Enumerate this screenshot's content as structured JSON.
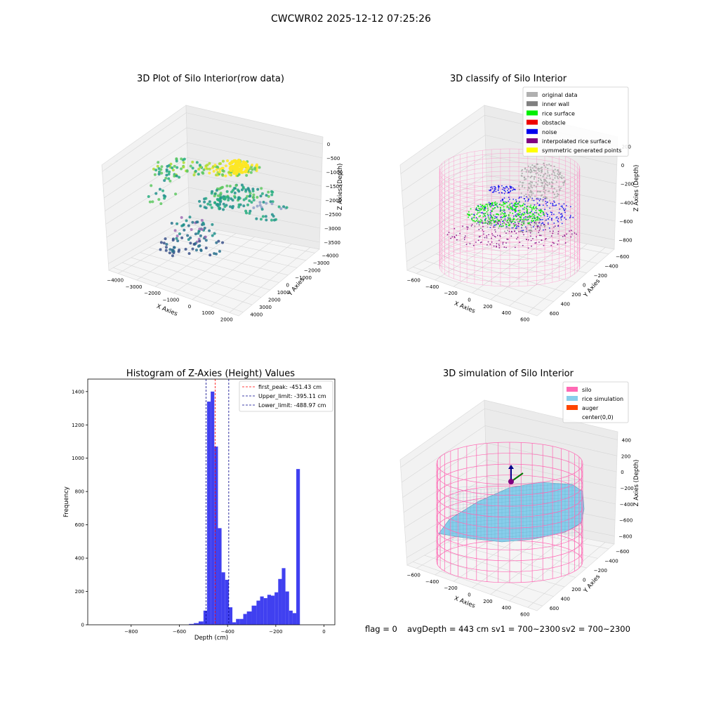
{
  "suptitle": "CWCWR02 2025-12-12 07:25:26",
  "panels": {
    "raw": {
      "title": "3D Plot of Silo Interior(row data)",
      "x_label": "X Axies",
      "y_label": "Y Axies",
      "z_label": "Z Axies (Depth)",
      "x_ticks": [
        "−4000",
        "−3000",
        "−2000",
        "−1000",
        "0",
        "1000",
        "2000"
      ],
      "y_ticks": [
        "−4000",
        "−3000",
        "−2000",
        "−1000",
        "0",
        "1000",
        "2000",
        "3000",
        "4000"
      ],
      "z_ticks": [
        "0",
        "−500",
        "−1000",
        "−1500",
        "−2000",
        "−2500",
        "−3000",
        "−3500"
      ]
    },
    "classify": {
      "title": "3D classify of Silo Interior",
      "x_label": "X Axies",
      "y_label": "Y Axies",
      "z_label": "Z Axies (Depth)",
      "x_ticks": [
        "−600",
        "−400",
        "−200",
        "0",
        "200",
        "400",
        "600"
      ],
      "y_ticks": [
        "−600",
        "−400",
        "−200",
        "0",
        "200",
        "400",
        "600"
      ],
      "z_ticks": [
        "200",
        "0",
        "−200",
        "−400",
        "−600",
        "−800"
      ],
      "legend": [
        {
          "label": "original data",
          "color": "#b0b0b0"
        },
        {
          "label": "inner wall",
          "color": "#808080"
        },
        {
          "label": "rice surface",
          "color": "#00ee00"
        },
        {
          "label": "obstacle",
          "color": "#ee0000"
        },
        {
          "label": "noise",
          "color": "#0000ee"
        },
        {
          "label": "interpolated rice surface",
          "color": "#800080"
        },
        {
          "label": "symmetric generated points",
          "color": "#ffff00"
        }
      ]
    },
    "histogram": {
      "title": "Histogram of Z-Axies (Height) Values",
      "x_label": "Depth (cm)",
      "y_label": "Frequency"
    },
    "simulation": {
      "title": "3D simulation of Silo Interior",
      "x_label": "X Axies",
      "y_label": "Y Axies",
      "z_label": "Z Axies (Depth)",
      "x_ticks": [
        "−600",
        "−400",
        "−200",
        "0",
        "200",
        "400",
        "600"
      ],
      "y_ticks": [
        "−600",
        "−400",
        "−200",
        "0",
        "200",
        "400",
        "600"
      ],
      "z_ticks": [
        "400",
        "200",
        "0",
        "−200",
        "−400",
        "−600",
        "−800"
      ],
      "legend": [
        {
          "label": "silo",
          "color": "#ff69b4"
        },
        {
          "label": "rice simulation",
          "color": "#87ceeb"
        },
        {
          "label": "auger",
          "color": "#ff4500"
        },
        {
          "label": "center(0,0)",
          "color": null
        }
      ]
    }
  },
  "chart_data": {
    "type": "bar",
    "title": "Histogram of Z-Axies (Height) Values",
    "xlabel": "Depth (cm)",
    "ylabel": "Frequency",
    "xlim": [
      -980,
      45
    ],
    "ylim": [
      0,
      1475
    ],
    "x_ticks": [
      -800,
      -600,
      -400,
      -200,
      0
    ],
    "x_tick_labels": [
      "−800",
      "−600",
      "−400",
      "−200",
      "0"
    ],
    "y_ticks": [
      0,
      200,
      400,
      600,
      800,
      1000,
      1200,
      1400
    ],
    "bin_edges": [
      -560,
      -540,
      -520,
      -500,
      -485,
      -470,
      -455,
      -440,
      -425,
      -410,
      -395,
      -380,
      -365,
      -350,
      -335,
      -320,
      -300,
      -280,
      -265,
      -250,
      -235,
      -220,
      -205,
      -190,
      -175,
      -160,
      -145,
      -130,
      -115,
      -100,
      -85,
      -70,
      -55,
      -40,
      -25,
      -10,
      0
    ],
    "counts": [
      5,
      10,
      20,
      85,
      1340,
      1400,
      1070,
      580,
      315,
      270,
      105,
      15,
      35,
      35,
      65,
      80,
      115,
      145,
      170,
      160,
      180,
      175,
      195,
      275,
      340,
      200,
      85,
      70,
      935,
      0,
      0,
      0,
      0,
      0,
      0,
      0
    ],
    "series_color": "#4040f0",
    "lines": [
      {
        "label": "first_peak: -451.43 cm",
        "x": -451.43,
        "color": "#ff0000"
      },
      {
        "label": "Upper_limit: -395.11 cm",
        "x": -395.11,
        "color": "#00008b"
      },
      {
        "label": "Lower_limit: -488.97 cm",
        "x": -488.97,
        "color": "#00008b"
      }
    ],
    "legend_position": "upper right"
  },
  "footer": {
    "flag": "flag = 0",
    "avg": "avgDepth = 443 cm",
    "sv1": "sv1 = 700~2300",
    "sv2": "sv2 = 700~2300"
  }
}
